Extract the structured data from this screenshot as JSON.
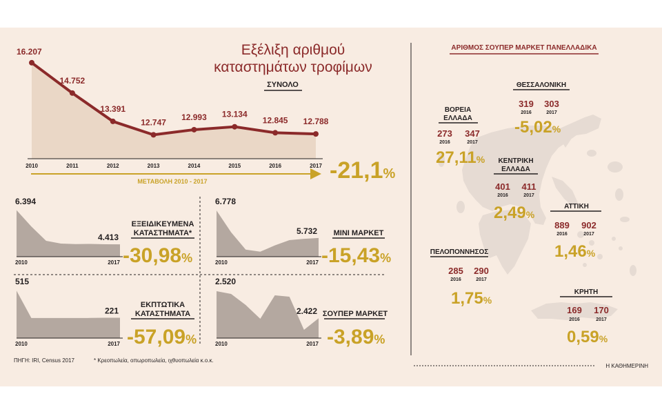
{
  "colors": {
    "background": "#f8ece2",
    "line": "#8b2a2a",
    "area": "#ead7c6",
    "small_area": "#b4a8a0",
    "gold": "#c9a227",
    "text": "#231f20",
    "map": "#e6dbd3"
  },
  "chart_data": [
    {
      "type": "line",
      "id": "total",
      "title": "Εξέλιξη αριθμού καταστημάτων τροφίμων",
      "title_line1": "Εξέλιξη αριθμού",
      "title_line2": "καταστημάτων τροφίμων",
      "subtitle": "ΣΥΝΟΛΟ",
      "x": [
        "2010",
        "2011",
        "2012",
        "2013",
        "2014",
        "2015",
        "2016",
        "2017"
      ],
      "values": [
        16207,
        14752,
        13391,
        12747,
        12993,
        13134,
        12845,
        12788
      ],
      "value_labels": [
        "16.207",
        "14.752",
        "13.391",
        "12.747",
        "12.993",
        "13.134",
        "12.845",
        "12.788"
      ],
      "ylim": [
        11600,
        16900
      ],
      "arrow_label": "ΜΕΤΑΒΟΛΗ 2010 - 2017",
      "change": "-21,1",
      "change_unit": "%"
    },
    {
      "type": "area",
      "id": "specialized",
      "label_line1": "ΕΞΕΙΔΙΚΕΥΜΕΝΑ",
      "label_line2": "ΚΑΤΑΣΤΗΜΑΤΑ*",
      "x_start": "2010",
      "x_end": "2017",
      "start_label": "6.394",
      "end_label": "4.413",
      "values": [
        6394,
        5450,
        4620,
        4460,
        4430,
        4440,
        4420,
        4413
      ],
      "ylim": [
        3700,
        6500
      ],
      "change": "-30,98",
      "change_unit": "%"
    },
    {
      "type": "area",
      "id": "mini_market",
      "label_line1": "ΜΙΝΙ ΜΑΡΚΕΤ",
      "x_start": "2010",
      "x_end": "2017",
      "start_label": "6.778",
      "end_label": "5.732",
      "values": [
        6778,
        5950,
        5290,
        5210,
        5450,
        5650,
        5700,
        5732
      ],
      "ylim": [
        5020,
        6860
      ],
      "change": "-15,43",
      "change_unit": "%"
    },
    {
      "type": "area",
      "id": "discount",
      "label_line1": "ΕΚΠΤΩΤΙΚΑ",
      "label_line2": "ΚΑΤΑΣΤΗΜΑΤΑ",
      "x_start": "2010",
      "x_end": "2017",
      "start_label": "515",
      "end_label": "221",
      "values": [
        515,
        218,
        218,
        218,
        218,
        219,
        221,
        221
      ],
      "ylim": [
        0,
        540
      ],
      "change": "-57,09",
      "change_unit": "%"
    },
    {
      "type": "area",
      "id": "supermarket",
      "label_line1": "ΣΟΥΠΕΡ ΜΑΡΚΕΤ",
      "x_start": "2010",
      "x_end": "2017",
      "start_label": "2.520",
      "end_label": "2.422",
      "values": [
        2520,
        2510,
        2470,
        2420,
        2505,
        2500,
        2380,
        2422
      ],
      "ylim": [
        2350,
        2530
      ],
      "change": "-3,89",
      "change_unit": "%"
    }
  ],
  "map": {
    "title": "ΑΡΙΘΜΟΣ ΣΟΥΠΕΡ ΜΑΡΚΕΤ ΠΑΝΕΛΛΑΔΙΚΑ",
    "regions": [
      {
        "id": "north",
        "name_line1": "ΒΟΡΕΙΑ",
        "name_line2": "ΕΛΛΑΔΑ",
        "v2016": "273",
        "v2017": "347",
        "change": "27,11",
        "change_unit": "%"
      },
      {
        "id": "thessaloniki",
        "name_line1": "ΘΕΣΣΑΛΟΝΙΚΗ",
        "v2016": "319",
        "v2017": "303",
        "change": "-5,02",
        "change_unit": "%"
      },
      {
        "id": "central",
        "name_line1": "ΚΕΝΤΡΙΚΗ",
        "name_line2": "ΕΛΛΑΔΑ",
        "v2016": "401",
        "v2017": "411",
        "change": "2,49",
        "change_unit": "%"
      },
      {
        "id": "attica",
        "name_line1": "ΑΤΤΙΚΗ",
        "v2016": "889",
        "v2017": "902",
        "change": "1,46",
        "change_unit": "%"
      },
      {
        "id": "peloponnese",
        "name_line1": "ΠΕΛΟΠΟΝΝΗΣΟΣ",
        "v2016": "285",
        "v2017": "290",
        "change": "1,75",
        "change_unit": "%"
      },
      {
        "id": "crete",
        "name_line1": "ΚΡΗΤΗ",
        "v2016": "169",
        "v2017": "170",
        "change": "0,59",
        "change_unit": "%"
      }
    ],
    "year_a": "2016",
    "year_b": "2017"
  },
  "footer": {
    "source": "ΠΗΓΗ: IRI, Census 2017",
    "footnote": "* Κρεοπωλεία, οπωροπωλεία, ιχθυοπωλεία κ.ο.κ.",
    "credit": "Η ΚΑΘΗΜΕΡΙΝΗ"
  }
}
